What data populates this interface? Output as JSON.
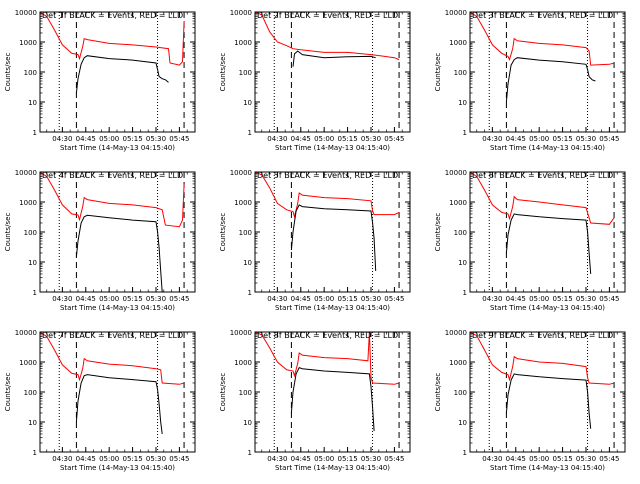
{
  "colors": {
    "events": "#000000",
    "lld": "#ff0000",
    "background": "#ffffff"
  },
  "chart_data": [
    {
      "type": "line",
      "title": "Det 1f BLACK = Events, RED = LLD",
      "xlabel": "Start Time (14-May-13 04:15:40)",
      "ylabel": "Counts/sec",
      "xlim": [
        "04:15:40",
        "05:55"
      ],
      "ylim": [
        1,
        10000
      ],
      "yscale": "log",
      "x_tick_labels": [
        "04:30",
        "04:45",
        "05:00",
        "05:15",
        "05:30",
        "05:45"
      ],
      "y_tick_labels": [
        "1",
        "10",
        "100",
        "1000",
        "10000"
      ],
      "dotted_lines": [
        "04:28",
        "05:31"
      ],
      "dashed_lines": [
        "04:39",
        "05:48"
      ],
      "series": [
        {
          "color": "#ff0000",
          "x": [
            "04:15:40",
            "04:20",
            "04:25",
            "04:30",
            "04:36",
            "04:40",
            "04:41",
            "04:43",
            "04:44",
            "04:46",
            "05:00",
            "05:15",
            "05:30",
            "05:38",
            "05:39",
            "05:45",
            "05:47",
            "05:48"
          ],
          "y": [
            10000,
            7000,
            2500,
            800,
            420,
            380,
            280,
            700,
            1300,
            1200,
            900,
            800,
            680,
            600,
            200,
            170,
            220,
            5000
          ]
        },
        {
          "color": "#000000",
          "x": [
            "04:39",
            "04:40",
            "04:42",
            "04:44",
            "04:46",
            "05:00",
            "05:15",
            "05:30",
            "05:31",
            "05:32",
            "05:34",
            "05:36",
            "05:38"
          ],
          "y": [
            20,
            60,
            180,
            300,
            350,
            280,
            250,
            200,
            120,
            70,
            60,
            55,
            45
          ]
        }
      ]
    },
    {
      "type": "line",
      "title": "Det 2f BLACK = Events, RED = LLD",
      "xlabel": "Start Time (14-May-13 04:15:40)",
      "ylabel": "Counts/sec",
      "xlim": [
        "04:15:40",
        "05:55"
      ],
      "ylim": [
        1,
        10000
      ],
      "yscale": "log",
      "x_tick_labels": [
        "04:30",
        "04:45",
        "05:00",
        "05:15",
        "05:30",
        "05:45"
      ],
      "y_tick_labels": [
        "1",
        "10",
        "100",
        "1000",
        "10000"
      ],
      "dotted_lines": [
        "04:28",
        "05:31"
      ],
      "dashed_lines": [
        "04:39",
        "05:48"
      ],
      "series": [
        {
          "color": "#ff0000",
          "x": [
            "04:15:40",
            "04:20",
            "04:25",
            "04:30",
            "04:36",
            "04:40",
            "04:45",
            "05:00",
            "05:15",
            "05:30",
            "05:45",
            "05:48"
          ],
          "y": [
            10000,
            8000,
            2200,
            1000,
            750,
            600,
            550,
            450,
            450,
            380,
            300,
            260
          ]
        },
        {
          "color": "#000000",
          "x": [
            "04:40",
            "04:41",
            "04:43",
            "04:46",
            "05:00",
            "05:15",
            "05:30",
            "05:33"
          ],
          "y": [
            150,
            400,
            500,
            380,
            300,
            320,
            330,
            300
          ]
        }
      ]
    },
    {
      "type": "line",
      "title": "Det 3f BLACK = Events, RED = LLD",
      "xlabel": "Start Time (14-May-13 04:15:40)",
      "ylabel": "Counts/sec",
      "xlim": [
        "04:15:40",
        "05:55"
      ],
      "ylim": [
        1,
        10000
      ],
      "yscale": "log",
      "x_tick_labels": [
        "04:30",
        "04:45",
        "05:00",
        "05:15",
        "05:30",
        "05:45"
      ],
      "y_tick_labels": [
        "1",
        "10",
        "100",
        "1000",
        "10000"
      ],
      "dotted_lines": [
        "04:28",
        "05:31"
      ],
      "dashed_lines": [
        "04:39",
        "05:48"
      ],
      "series": [
        {
          "color": "#ff0000",
          "x": [
            "04:15:40",
            "04:20",
            "04:25",
            "04:30",
            "04:36",
            "04:40",
            "04:41",
            "04:43",
            "04:44",
            "04:46",
            "05:00",
            "05:15",
            "05:30",
            "05:32",
            "05:33",
            "05:45",
            "05:48"
          ],
          "y": [
            10000,
            7000,
            2500,
            800,
            420,
            330,
            260,
            600,
            1300,
            1100,
            900,
            800,
            650,
            500,
            170,
            180,
            200
          ]
        },
        {
          "color": "#000000",
          "x": [
            "04:39",
            "04:40",
            "04:42",
            "04:44",
            "04:46",
            "05:00",
            "05:15",
            "05:30",
            "05:31",
            "05:32",
            "05:34",
            "05:36"
          ],
          "y": [
            10,
            40,
            170,
            260,
            300,
            250,
            220,
            180,
            120,
            70,
            55,
            50
          ]
        }
      ]
    },
    {
      "type": "line",
      "title": "Det 4f BLACK = Events, RED = LLD",
      "xlabel": "Start Time (14-May-13 04:15:40)",
      "ylabel": "Counts/sec",
      "xlim": [
        "04:15:40",
        "05:55"
      ],
      "ylim": [
        1,
        10000
      ],
      "yscale": "log",
      "x_tick_labels": [
        "04:30",
        "04:45",
        "05:00",
        "05:15",
        "05:30",
        "05:45"
      ],
      "y_tick_labels": [
        "1",
        "10",
        "100",
        "1000",
        "10000"
      ],
      "dotted_lines": [
        "04:28",
        "05:31"
      ],
      "dashed_lines": [
        "04:39",
        "05:48"
      ],
      "series": [
        {
          "color": "#ff0000",
          "x": [
            "04:15:40",
            "04:20",
            "04:25",
            "04:30",
            "04:36",
            "04:40",
            "04:41",
            "04:43",
            "04:44",
            "04:46",
            "05:00",
            "05:15",
            "05:30",
            "05:34",
            "05:36",
            "05:45",
            "05:47",
            "05:48"
          ],
          "y": [
            10000,
            7000,
            2500,
            800,
            400,
            370,
            260,
            700,
            1400,
            1200,
            900,
            800,
            650,
            550,
            170,
            150,
            250,
            4000
          ]
        },
        {
          "color": "#000000",
          "x": [
            "04:39",
            "04:40",
            "04:42",
            "04:44",
            "04:46",
            "05:00",
            "05:15",
            "05:30",
            "05:31",
            "05:32",
            "05:33",
            "05:34"
          ],
          "y": [
            15,
            50,
            200,
            320,
            360,
            300,
            250,
            220,
            100,
            30,
            5,
            1
          ]
        }
      ]
    },
    {
      "type": "line",
      "title": "Det 5f BLACK = Events, RED = LLD",
      "xlabel": "Start Time (14-May-13 04:15:40)",
      "ylabel": "Counts/sec",
      "xlim": [
        "04:15:40",
        "05:55"
      ],
      "ylim": [
        1,
        10000
      ],
      "yscale": "log",
      "x_tick_labels": [
        "04:30",
        "04:45",
        "05:00",
        "05:15",
        "05:30",
        "05:45"
      ],
      "y_tick_labels": [
        "1",
        "10",
        "100",
        "1000",
        "10000"
      ],
      "dotted_lines": [
        "04:28",
        "05:31"
      ],
      "dashed_lines": [
        "04:39",
        "05:48"
      ],
      "series": [
        {
          "color": "#ff0000",
          "x": [
            "04:15:40",
            "04:20",
            "04:25",
            "04:30",
            "04:36",
            "04:40",
            "04:41",
            "04:43",
            "04:44",
            "04:46",
            "05:00",
            "05:15",
            "05:30",
            "05:31",
            "05:32",
            "05:45",
            "05:48"
          ],
          "y": [
            10000,
            8000,
            3000,
            900,
            550,
            480,
            320,
            900,
            2000,
            1700,
            1400,
            1300,
            1100,
            500,
            380,
            380,
            450
          ]
        },
        {
          "color": "#000000",
          "x": [
            "04:39",
            "04:40",
            "04:42",
            "04:44",
            "04:46",
            "05:00",
            "05:15",
            "05:30",
            "05:31",
            "05:32",
            "05:33"
          ],
          "y": [
            25,
            100,
            500,
            800,
            700,
            600,
            550,
            500,
            200,
            60,
            5
          ]
        }
      ]
    },
    {
      "type": "line",
      "title": "Det 6f BLACK = Events, RED = LLD",
      "xlabel": "Start Time (14-May-13 04:15:40)",
      "ylabel": "Counts/sec",
      "xlim": [
        "04:15:40",
        "05:55"
      ],
      "ylim": [
        1,
        10000
      ],
      "yscale": "log",
      "x_tick_labels": [
        "04:30",
        "04:45",
        "05:00",
        "05:15",
        "05:30",
        "05:45"
      ],
      "y_tick_labels": [
        "1",
        "10",
        "100",
        "1000",
        "10000"
      ],
      "dotted_lines": [
        "04:28",
        "05:31"
      ],
      "dashed_lines": [
        "04:39",
        "05:48"
      ],
      "series": [
        {
          "color": "#ff0000",
          "x": [
            "04:15:40",
            "04:20",
            "04:25",
            "04:30",
            "04:36",
            "04:40",
            "04:41",
            "04:43",
            "04:44",
            "04:46",
            "05:00",
            "05:15",
            "05:30",
            "05:32",
            "05:33",
            "05:45",
            "05:48"
          ],
          "y": [
            10000,
            7000,
            2500,
            800,
            450,
            400,
            280,
            700,
            1500,
            1200,
            1000,
            800,
            650,
            300,
            200,
            180,
            300
          ]
        },
        {
          "color": "#000000",
          "x": [
            "04:39",
            "04:40",
            "04:42",
            "04:44",
            "04:46",
            "05:00",
            "05:15",
            "05:30",
            "05:31",
            "05:32",
            "05:33"
          ],
          "y": [
            20,
            80,
            250,
            400,
            380,
            320,
            280,
            250,
            100,
            20,
            4
          ]
        }
      ]
    },
    {
      "type": "line",
      "title": "Det 7f BLACK = Events, RED = LLD",
      "xlabel": "Start Time (14-May-13 04:15:40)",
      "ylabel": "Counts/sec",
      "xlim": [
        "04:15:40",
        "05:55"
      ],
      "ylim": [
        1,
        10000
      ],
      "yscale": "log",
      "x_tick_labels": [
        "04:30",
        "04:45",
        "05:00",
        "05:15",
        "05:30",
        "05:45"
      ],
      "y_tick_labels": [
        "1",
        "10",
        "100",
        "1000",
        "10000"
      ],
      "dotted_lines": [
        "04:28",
        "05:31"
      ],
      "dashed_lines": [
        "04:39",
        "05:48"
      ],
      "series": [
        {
          "color": "#ff0000",
          "x": [
            "04:15:40",
            "04:20",
            "04:25",
            "04:30",
            "04:36",
            "04:40",
            "04:41",
            "04:43",
            "04:44",
            "04:46",
            "05:00",
            "05:15",
            "05:30",
            "05:33",
            "05:34",
            "05:45",
            "05:48"
          ],
          "y": [
            10000,
            7000,
            2500,
            800,
            420,
            380,
            260,
            600,
            1300,
            1100,
            850,
            750,
            600,
            550,
            200,
            180,
            200
          ]
        },
        {
          "color": "#000000",
          "x": [
            "04:39",
            "04:40",
            "04:42",
            "04:44",
            "04:46",
            "05:00",
            "05:15",
            "05:30",
            "05:31",
            "05:32",
            "05:33",
            "05:34"
          ],
          "y": [
            10,
            50,
            200,
            350,
            380,
            300,
            260,
            220,
            120,
            40,
            10,
            4
          ]
        }
      ]
    },
    {
      "type": "line",
      "title": "Det 8f BLACK = Events, RED = LLD",
      "xlabel": "Start Time (14-May-13 04:15:40)",
      "ylabel": "Counts/sec",
      "xlim": [
        "04:15:40",
        "05:55"
      ],
      "ylim": [
        1,
        10000
      ],
      "yscale": "log",
      "x_tick_labels": [
        "04:30",
        "04:45",
        "05:00",
        "05:15",
        "05:30",
        "05:45"
      ],
      "y_tick_labels": [
        "1",
        "10",
        "100",
        "1000",
        "10000"
      ],
      "dotted_lines": [
        "04:28",
        "05:31"
      ],
      "dashed_lines": [
        "04:39",
        "05:48"
      ],
      "series": [
        {
          "color": "#ff0000",
          "x": [
            "04:15:40",
            "04:20",
            "04:25",
            "04:30",
            "04:36",
            "04:40",
            "04:41",
            "04:43",
            "04:44",
            "04:46",
            "05:00",
            "05:15",
            "05:28",
            "05:29",
            "05:30",
            "05:31",
            "05:45",
            "05:48"
          ],
          "y": [
            10000,
            8000,
            3000,
            1000,
            550,
            500,
            350,
            900,
            2000,
            1700,
            1400,
            1300,
            1100,
            10000,
            300,
            200,
            180,
            200
          ]
        },
        {
          "color": "#000000",
          "x": [
            "04:39",
            "04:40",
            "04:42",
            "04:44",
            "04:46",
            "05:00",
            "05:15",
            "05:29",
            "05:30",
            "05:31",
            "05:32"
          ],
          "y": [
            20,
            100,
            400,
            650,
            600,
            500,
            450,
            400,
            150,
            30,
            5
          ]
        }
      ]
    },
    {
      "type": "line",
      "title": "Det 9f BLACK = Events, RED = LLD",
      "xlabel": "Start Time (14-May-13 04:15:40)",
      "ylabel": "Counts/sec",
      "xlim": [
        "04:15:40",
        "05:55"
      ],
      "ylim": [
        1,
        10000
      ],
      "yscale": "log",
      "x_tick_labels": [
        "04:30",
        "04:45",
        "05:00",
        "05:15",
        "05:30",
        "05:45"
      ],
      "y_tick_labels": [
        "1",
        "10",
        "100",
        "1000",
        "10000"
      ],
      "dotted_lines": [
        "04:28",
        "05:31"
      ],
      "dashed_lines": [
        "04:39",
        "05:48"
      ],
      "series": [
        {
          "color": "#ff0000",
          "x": [
            "04:15:40",
            "04:20",
            "04:25",
            "04:30",
            "04:36",
            "04:40",
            "04:41",
            "04:43",
            "04:44",
            "04:46",
            "05:00",
            "05:15",
            "05:30",
            "05:31",
            "05:32",
            "05:45",
            "05:48"
          ],
          "y": [
            10000,
            7500,
            2500,
            800,
            450,
            380,
            260,
            700,
            1500,
            1300,
            1000,
            900,
            700,
            300,
            200,
            180,
            200
          ]
        },
        {
          "color": "#000000",
          "x": [
            "04:39",
            "04:40",
            "04:42",
            "04:44",
            "04:46",
            "05:00",
            "05:15",
            "05:30",
            "05:31",
            "05:32",
            "05:33"
          ],
          "y": [
            20,
            80,
            250,
            400,
            380,
            320,
            280,
            250,
            100,
            20,
            6
          ]
        }
      ]
    }
  ]
}
